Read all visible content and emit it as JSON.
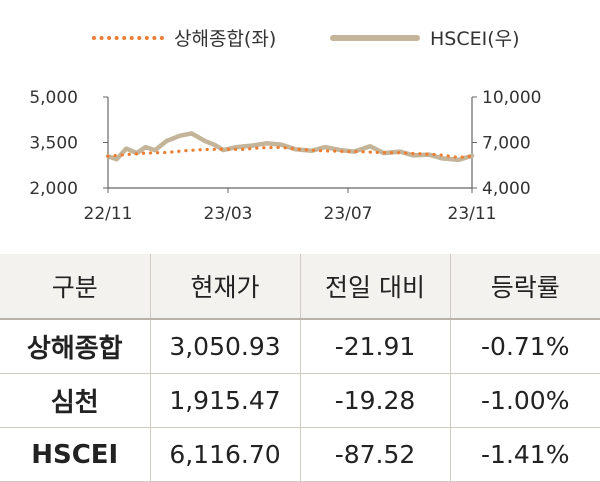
{
  "legend": {
    "series1": "상해종합(좌)",
    "series2": "HSCEI(우)"
  },
  "chart_data": {
    "type": "line",
    "x_ticks": [
      "22/11",
      "23/03",
      "23/07",
      "23/11"
    ],
    "y_left": {
      "ticks": [
        "5,000",
        "3,500",
        "2,000"
      ],
      "lim": [
        2000,
        5000
      ]
    },
    "y_right": {
      "ticks": [
        "10,000",
        "7,000",
        "4,000"
      ],
      "lim": [
        4000,
        10000
      ]
    },
    "series": [
      {
        "name": "상해종합(좌)",
        "axis": "left",
        "style": "dotted",
        "color": "#ED7D31",
        "x": [
          "2022-11-01",
          "2022-11-20",
          "2022-12-10",
          "2023-01-01",
          "2023-01-20",
          "2023-02-10",
          "2023-03-01",
          "2023-03-20",
          "2023-04-10",
          "2023-05-01",
          "2023-05-20",
          "2023-06-10",
          "2023-07-01",
          "2023-07-20",
          "2023-08-10",
          "2023-09-01",
          "2023-09-20",
          "2023-10-10",
          "2023-11-01",
          "2023-11-15"
        ],
        "values": [
          3050,
          3100,
          3150,
          3170,
          3230,
          3270,
          3280,
          3270,
          3330,
          3340,
          3270,
          3230,
          3210,
          3200,
          3170,
          3160,
          3130,
          3100,
          3010,
          3050
        ]
      },
      {
        "name": "HSCEI(우)",
        "axis": "right",
        "style": "solid",
        "color": "#C4B59A",
        "x": [
          "2022-11-01",
          "2022-11-10",
          "2022-11-20",
          "2022-12-01",
          "2022-12-10",
          "2022-12-20",
          "2023-01-01",
          "2023-01-15",
          "2023-01-27",
          "2023-02-10",
          "2023-02-20",
          "2023-03-01",
          "2023-03-15",
          "2023-04-01",
          "2023-04-15",
          "2023-05-01",
          "2023-05-15",
          "2023-06-01",
          "2023-06-15",
          "2023-07-01",
          "2023-07-15",
          "2023-08-01",
          "2023-08-15",
          "2023-09-01",
          "2023-09-15",
          "2023-10-01",
          "2023-10-15",
          "2023-11-01",
          "2023-11-15"
        ],
        "values": [
          6100,
          5900,
          6600,
          6300,
          6700,
          6500,
          7100,
          7450,
          7600,
          7100,
          6850,
          6500,
          6700,
          6800,
          6950,
          6850,
          6550,
          6450,
          6700,
          6500,
          6400,
          6750,
          6300,
          6400,
          6150,
          6200,
          5950,
          5850,
          6120
        ]
      }
    ],
    "grid": false
  },
  "table": {
    "headers": [
      "구분",
      "현재가",
      "전일 대비",
      "등락률"
    ],
    "rows": [
      [
        "상해종합",
        "3,050.93",
        "-21.91",
        "-0.71%"
      ],
      [
        "심천",
        "1,915.47",
        "-19.28",
        "-1.00%"
      ],
      [
        "HSCEI",
        "6,116.70",
        "-87.52",
        "-1.41%"
      ]
    ]
  }
}
